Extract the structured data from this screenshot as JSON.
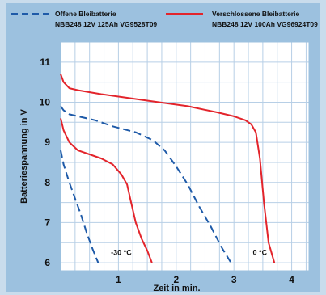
{
  "chart_data": {
    "type": "line",
    "xlabel": "Zeit in min.",
    "ylabel": "Batteriespannung in V",
    "xlim": [
      0,
      4.3
    ],
    "ylim": [
      5.8,
      11.5
    ],
    "xticks": [
      1,
      2,
      3,
      4
    ],
    "yticks": [
      6,
      7,
      8,
      9,
      10,
      11
    ],
    "grid": true,
    "legend_position": "top",
    "legend": [
      {
        "name": "Offene Bleibatterie",
        "detail": "NBB248 12V 125Ah VG9528T09",
        "style": "dashed",
        "color": "#1e5aa8"
      },
      {
        "name": "Verschlossene Bleibatterie",
        "detail": "NBB248 12V 100Ah VG96924T09",
        "style": "solid",
        "color": "#e3242b"
      }
    ],
    "annotations": [
      {
        "text": "-30 °C",
        "x": 1.05,
        "y": 6.25
      },
      {
        "text": "0 °C",
        "x": 3.45,
        "y": 6.25
      }
    ],
    "series": [
      {
        "legend": 0,
        "condition": "-30 °C",
        "style": "dashed",
        "color": "#1e5aa8",
        "x": [
          0.0,
          0.05,
          0.15,
          0.25,
          0.35,
          0.45,
          0.55,
          0.65
        ],
        "y": [
          8.8,
          8.45,
          8.0,
          7.6,
          7.2,
          6.75,
          6.35,
          6.0
        ]
      },
      {
        "legend": 1,
        "condition": "-30 °C",
        "style": "solid",
        "color": "#e3242b",
        "x": [
          0.0,
          0.05,
          0.15,
          0.3,
          0.5,
          0.7,
          0.9,
          1.05,
          1.15,
          1.22,
          1.3,
          1.4,
          1.5,
          1.58
        ],
        "y": [
          9.6,
          9.3,
          9.0,
          8.8,
          8.7,
          8.6,
          8.45,
          8.2,
          7.95,
          7.5,
          7.0,
          6.6,
          6.3,
          6.0
        ]
      },
      {
        "legend": 0,
        "condition": "0 °C",
        "style": "dashed",
        "color": "#1e5aa8",
        "x": [
          0.0,
          0.05,
          0.15,
          0.3,
          0.6,
          0.9,
          1.3,
          1.6,
          1.8,
          2.0,
          2.2,
          2.4,
          2.6,
          2.8,
          2.95
        ],
        "y": [
          9.9,
          9.8,
          9.7,
          9.65,
          9.55,
          9.4,
          9.25,
          9.05,
          8.8,
          8.4,
          7.95,
          7.4,
          6.9,
          6.35,
          6.0
        ]
      },
      {
        "legend": 1,
        "condition": "0 °C",
        "style": "solid",
        "color": "#e3242b",
        "x": [
          0.0,
          0.05,
          0.15,
          0.3,
          0.7,
          1.2,
          1.7,
          2.2,
          2.7,
          3.0,
          3.2,
          3.3,
          3.38,
          3.45,
          3.52,
          3.6,
          3.7
        ],
        "y": [
          10.7,
          10.5,
          10.35,
          10.3,
          10.2,
          10.1,
          10.0,
          9.9,
          9.75,
          9.65,
          9.55,
          9.45,
          9.25,
          8.6,
          7.5,
          6.5,
          6.0
        ]
      }
    ]
  }
}
